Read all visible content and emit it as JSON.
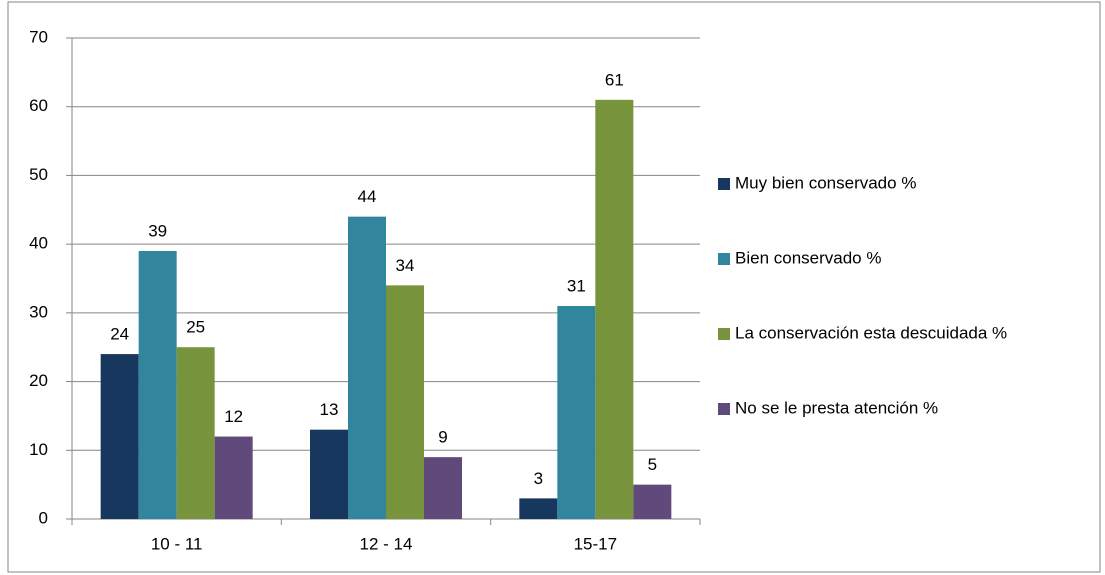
{
  "chart_data": {
    "type": "bar",
    "categories": [
      "10 - 11",
      "12 - 14",
      "15-17"
    ],
    "series": [
      {
        "name": "Muy bien conservado %",
        "color": "#17375e",
        "values": [
          24,
          13,
          3
        ]
      },
      {
        "name": "Bien conservado %",
        "color": "#31859c",
        "values": [
          39,
          44,
          31
        ]
      },
      {
        "name": "La conservación esta descuidada %",
        "color": "#77933c",
        "values": [
          25,
          34,
          61
        ]
      },
      {
        "name": "No se le presta atención %",
        "color": "#604a7b",
        "values": [
          12,
          9,
          5
        ]
      }
    ],
    "ylim": [
      0,
      70
    ],
    "yticks": [
      0,
      10,
      20,
      30,
      40,
      50,
      60,
      70
    ],
    "grid": true,
    "legend": "right"
  }
}
